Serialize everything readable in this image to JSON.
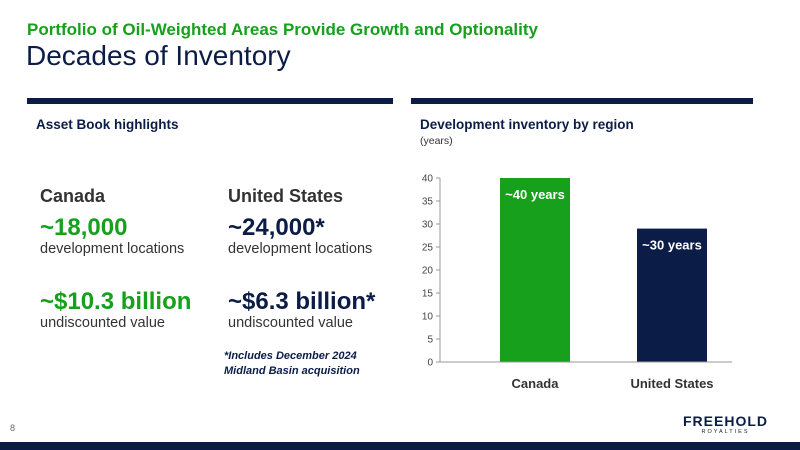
{
  "header": {
    "kicker": "Portfolio of Oil-Weighted Areas Provide Growth and Optionality",
    "title": "Decades of Inventory"
  },
  "left_panel": {
    "heading": "Asset Book highlights",
    "canada": {
      "region": "Canada",
      "locations": "~18,000",
      "locations_caption": "development locations",
      "value": "~$10.3 billion",
      "value_caption": "undiscounted value"
    },
    "united_states": {
      "region": "United States",
      "locations": "~24,000*",
      "locations_caption": "development locations",
      "value": "~$6.3 billion*",
      "value_caption": "undiscounted value"
    },
    "footnote_line1": "*Includes December 2024",
    "footnote_line2": "Midland Basin acquisition"
  },
  "right_panel": {
    "heading": "Development inventory by region",
    "subheading": "(years)"
  },
  "chart_data": {
    "type": "bar",
    "categories": [
      "Canada",
      "United States"
    ],
    "values": [
      40,
      29
    ],
    "data_labels": [
      "~40 years",
      "~30 years"
    ],
    "colors": [
      "#16a01c",
      "#0b1c46"
    ],
    "yticks": [
      0,
      5,
      10,
      15,
      20,
      25,
      30,
      35,
      40
    ],
    "ylim": [
      0,
      40
    ],
    "title": "",
    "xlabel": "",
    "ylabel": "",
    "grid": false
  },
  "footer": {
    "page_number": "8",
    "logo_main": "FREEHOLD",
    "logo_sub": "ROYALTIES"
  },
  "colors": {
    "accent_green": "#16a01c",
    "navy": "#0b1c46"
  }
}
